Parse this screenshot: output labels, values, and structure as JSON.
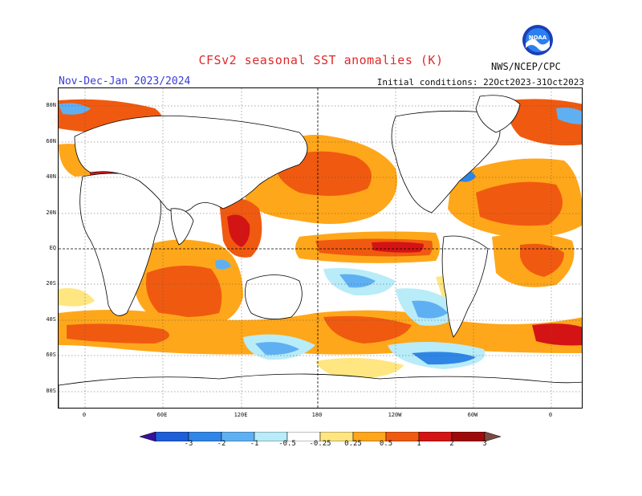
{
  "title": "CFSv2 seasonal SST anomalies (K)",
  "period": "Nov-Dec-Jan 2023/2024",
  "initial_conditions": "Initial conditions: 22Oct2023-31Oct2023",
  "agency": "NWS/NCEP/CPC",
  "logo_text": "NOAA",
  "lat_labels": [
    "80N",
    "60N",
    "40N",
    "20N",
    "EQ",
    "20S",
    "40S",
    "60S",
    "80S"
  ],
  "lon_labels": [
    "0",
    "60E",
    "120E",
    "180",
    "120W",
    "60W",
    "0"
  ],
  "legend": {
    "labels": [
      "-3",
      "-2",
      "-1",
      "-0.5",
      "-0.25",
      "0.25",
      "0.5",
      "1",
      "2",
      "3"
    ],
    "colors": [
      "#3a0fa0",
      "#1e5ed8",
      "#2f86e6",
      "#5fb0f2",
      "#b8ecf8",
      "#ffffff",
      "#ffe680",
      "#ffa71a",
      "#f05a10",
      "#d41414",
      "#9e0a0a",
      "#7a4a40"
    ]
  }
}
